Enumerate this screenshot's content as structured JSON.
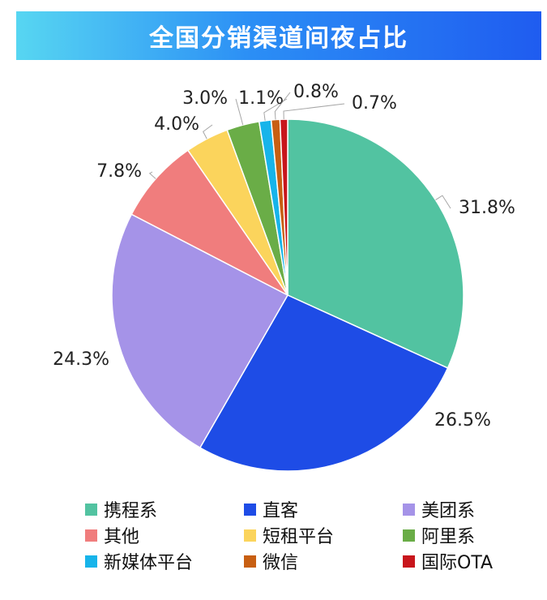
{
  "title": "全国分销渠道间夜占比",
  "chart_data": {
    "type": "pie",
    "title": "全国分销渠道间夜占比",
    "legend_position": "bottom",
    "slices": [
      {
        "label": "携程系",
        "value": 31.8,
        "value_label": "31.8%",
        "color": "#52c3a1"
      },
      {
        "label": "直客",
        "value": 26.5,
        "value_label": "26.5%",
        "color": "#1e4ce6"
      },
      {
        "label": "美团系",
        "value": 24.3,
        "value_label": "24.3%",
        "color": "#a593e8"
      },
      {
        "label": "其他",
        "value": 7.8,
        "value_label": "7.8%",
        "color": "#f07d7d"
      },
      {
        "label": "短租平台",
        "value": 4.0,
        "value_label": "4.0%",
        "color": "#fbd45c"
      },
      {
        "label": "阿里系",
        "value": 3.0,
        "value_label": "3.0%",
        "color": "#6aad47"
      },
      {
        "label": "新媒体平台",
        "value": 1.1,
        "value_label": "1.1%",
        "color": "#17b4ea"
      },
      {
        "label": "微信",
        "value": 0.8,
        "value_label": "0.8%",
        "color": "#c85f12"
      },
      {
        "label": "国际OTA",
        "value": 0.7,
        "value_label": "0.7%",
        "color": "#c8161c"
      }
    ]
  }
}
